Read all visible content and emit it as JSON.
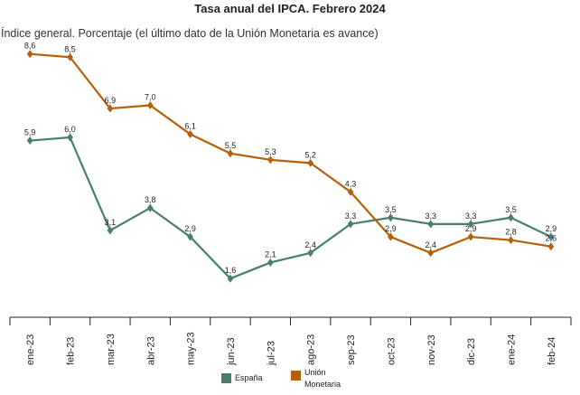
{
  "chart_data": {
    "type": "line",
    "title": "Tasa anual del IPCA. Febrero 2024",
    "subtitle": "Índice general. Porcentaje (el último dato de la Unión Monetaria es avance)",
    "categories": [
      "ene-23",
      "feb-23",
      "mar-23",
      "abr-23",
      "may-23",
      "jun-23",
      "jul-23",
      "ago-23",
      "sep-23",
      "oct-23",
      "nov-23",
      "dic-23",
      "ene-24",
      "feb-24"
    ],
    "ylim": [
      0,
      10
    ],
    "grid": false,
    "legend_position": "bottom",
    "series": [
      {
        "name": "España",
        "color": "#4a7c72",
        "values": [
          5.9,
          6.0,
          3.1,
          3.8,
          2.9,
          1.6,
          2.1,
          2.4,
          3.3,
          3.5,
          3.3,
          3.3,
          3.5,
          2.9
        ],
        "labels": [
          "5,9",
          "6,0",
          "3,1",
          "3,8",
          "2,9",
          "1,6",
          "2,1",
          "2,4",
          "3,3",
          "3,5",
          "3,3",
          "3,3",
          "3,5",
          "2,9"
        ]
      },
      {
        "name": "Unión Monetaria",
        "color": "#b5610a",
        "values": [
          8.6,
          8.5,
          6.9,
          7.0,
          6.1,
          5.5,
          5.3,
          5.2,
          4.3,
          2.9,
          2.4,
          2.9,
          2.8,
          2.6
        ],
        "labels": [
          "8,6",
          "8,5",
          "6,9",
          "7,0",
          "6,1",
          "5,5",
          "5,3",
          "5,2",
          "4,3",
          "2,9",
          "2,4",
          "2,9",
          "2,8",
          "2,6"
        ]
      }
    ]
  },
  "legend": {
    "spain_label": "España",
    "union_line1": "Unión",
    "union_line2": "Monetaria"
  }
}
